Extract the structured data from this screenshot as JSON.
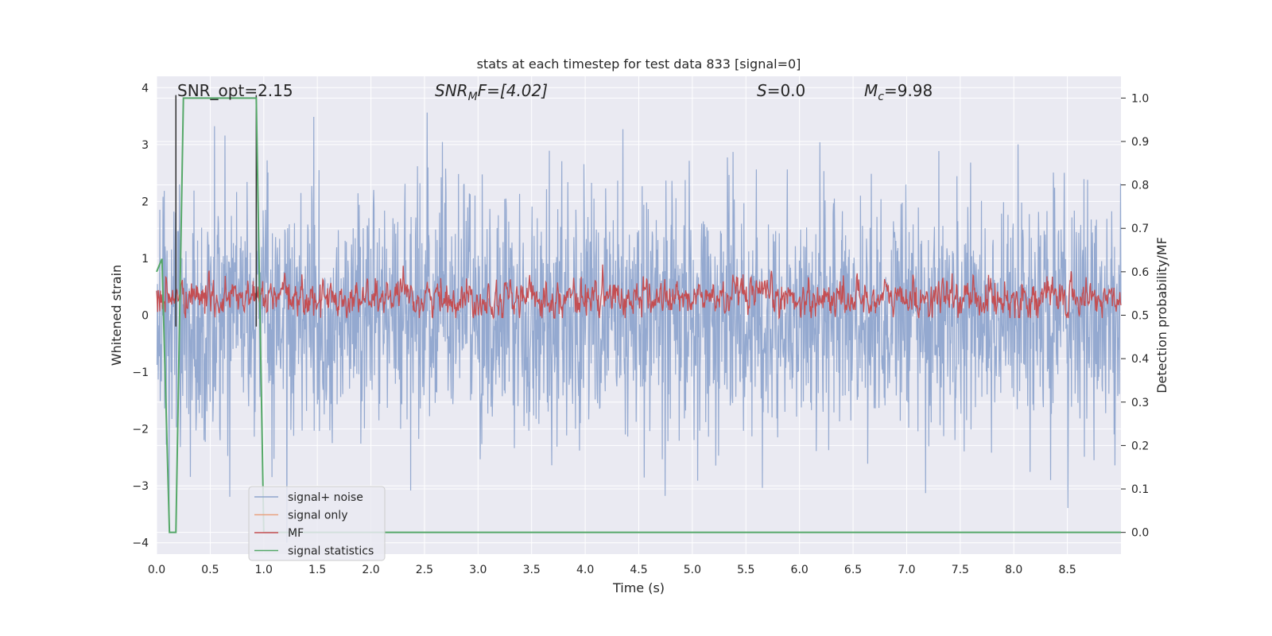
{
  "chart_data": {
    "type": "line",
    "title": "stats at each timestep for test data 833 [signal=0]",
    "xlabel": "Time (s)",
    "ylabel_left": "Whitened strain",
    "ylabel_right": "Detection probability/MF",
    "xlim": [
      0,
      9.0
    ],
    "ylim_left": [
      -4.2,
      4.2
    ],
    "ylim_right": [
      -0.05,
      1.05
    ],
    "x_ticks": [
      "0.0",
      "0.5",
      "1.0",
      "1.5",
      "2.0",
      "2.5",
      "3.0",
      "3.5",
      "4.0",
      "4.5",
      "5.0",
      "5.5",
      "6.0",
      "6.5",
      "7.0",
      "7.5",
      "8.0",
      "8.5"
    ],
    "y_ticks_left": [
      "4",
      "3",
      "2",
      "1",
      "0",
      "−1",
      "−2",
      "−3",
      "−4"
    ],
    "y_ticks_right": [
      "1.0",
      "0.9",
      "0.8",
      "0.7",
      "0.6",
      "0.5",
      "0.4",
      "0.3",
      "0.2",
      "0.1",
      "0.0"
    ],
    "grid": true,
    "legend_position": "lower-left",
    "annotations": {
      "snr_opt": "SNR_opt=2.15",
      "snr_mf_base": "SNR",
      "snr_mf_sub": "M",
      "snr_mf_rest": "F=[4.02]",
      "s_sym": "S",
      "s_rest": "=0.0",
      "mc_base": "M",
      "mc_sub": "c",
      "mc_rest": "=9.98"
    },
    "series": [
      {
        "name": "signal+ noise",
        "axis": "left",
        "color": "#8fa5cd",
        "description_values": "noise-like whitened strain, amplitude roughly within [-4, 3.9]"
      },
      {
        "name": "signal only",
        "axis": "left",
        "color": "#e8a07f",
        "values": []
      },
      {
        "name": "MF",
        "axis": "left",
        "color": "#c44e52",
        "description_values": "matched filter output oscillating around 0.3 (range ~0 to 0.95)"
      },
      {
        "name": "signal statistics",
        "axis": "right",
        "color": "#55a868",
        "x": [
          0.0,
          0.05,
          0.12,
          0.18,
          0.25,
          0.93,
          1.0,
          1.05,
          9.0
        ],
        "values": [
          0.6,
          0.63,
          0.0,
          0.0,
          1.0,
          1.0,
          0.0,
          0.0,
          0.0
        ]
      }
    ],
    "markers": {
      "color": "#333333",
      "x": [
        0.18,
        0.93
      ],
      "y_left_top": 3.87
    }
  }
}
